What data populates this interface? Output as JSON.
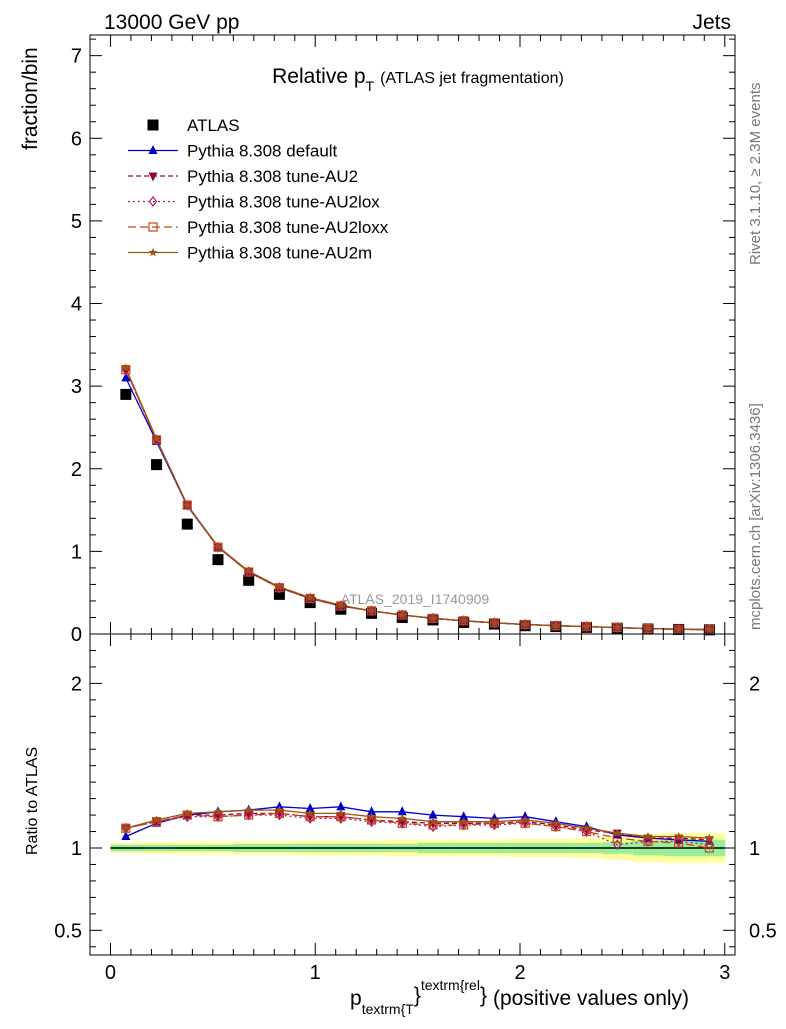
{
  "header": {
    "left": "13000 GeV pp",
    "right": "Jets"
  },
  "side_text": {
    "rivet": "Rivet 3.1.10, ≥ 2.3M events",
    "mcplots": "mcplots.cern.ch [arXiv:1306.3436]"
  },
  "watermark": "ATLAS_2019_I1740909",
  "chart_data": [
    {
      "type": "scatter",
      "panel": "main",
      "title": "Relative p_T (ATLAS jet fragmentation)",
      "title_main": "Relative p",
      "title_sub": "T",
      "title_rest": "(ATLAS jet fragmentation)",
      "ylabel": "fraction/bin",
      "xlim": [
        -0.1,
        3.05
      ],
      "ylim": [
        0,
        7.25
      ],
      "yticks": [
        0,
        1,
        2,
        3,
        4,
        5,
        6,
        7
      ],
      "x": [
        0.075,
        0.225,
        0.375,
        0.525,
        0.675,
        0.825,
        0.975,
        1.125,
        1.275,
        1.425,
        1.575,
        1.725,
        1.875,
        2.025,
        2.175,
        2.325,
        2.475,
        2.625,
        2.775,
        2.925
      ],
      "legend_position": "top-left",
      "series": [
        {
          "name": "ATLAS",
          "color": "#000000",
          "marker": "square",
          "values": [
            2.9,
            2.05,
            1.33,
            0.9,
            0.65,
            0.48,
            0.38,
            0.3,
            0.25,
            0.2,
            0.17,
            0.14,
            0.12,
            0.1,
            0.09,
            0.08,
            0.07,
            0.06,
            0.055,
            0.05
          ]
        },
        {
          "name": "Pythia 8.308 default",
          "color": "#0000cc",
          "marker": "triangle",
          "dash": "",
          "values": [
            3.1,
            2.33,
            1.55,
            1.05,
            0.75,
            0.56,
            0.43,
            0.34,
            0.28,
            0.23,
            0.19,
            0.16,
            0.135,
            0.115,
            0.1,
            0.09,
            0.078,
            0.065,
            0.058,
            0.052
          ]
        },
        {
          "name": "Pythia 8.308 tune-AU2",
          "color": "#990044",
          "marker": "triangle-down",
          "dash": "5,3",
          "values": [
            3.2,
            2.35,
            1.56,
            1.05,
            0.75,
            0.56,
            0.43,
            0.34,
            0.28,
            0.23,
            0.19,
            0.16,
            0.135,
            0.115,
            0.1,
            0.09,
            0.078,
            0.065,
            0.058,
            0.052
          ]
        },
        {
          "name": "Pythia 8.308 tune-AU2lox",
          "color": "#aa2266",
          "marker": "diamond",
          "dash": "2,3",
          "values": [
            3.2,
            2.35,
            1.56,
            1.05,
            0.75,
            0.56,
            0.43,
            0.34,
            0.28,
            0.23,
            0.19,
            0.16,
            0.135,
            0.115,
            0.1,
            0.09,
            0.078,
            0.065,
            0.058,
            0.052
          ]
        },
        {
          "name": "Pythia 8.308 tune-AU2loxx",
          "color": "#cc4411",
          "marker": "square-open",
          "dash": "8,4",
          "values": [
            3.2,
            2.35,
            1.56,
            1.05,
            0.75,
            0.56,
            0.43,
            0.34,
            0.28,
            0.23,
            0.19,
            0.16,
            0.135,
            0.115,
            0.1,
            0.09,
            0.078,
            0.065,
            0.058,
            0.052
          ]
        },
        {
          "name": "Pythia 8.308 tune-AU2m",
          "color": "#995511",
          "marker": "star",
          "dash": "",
          "values": [
            3.22,
            2.36,
            1.56,
            1.06,
            0.76,
            0.57,
            0.44,
            0.35,
            0.28,
            0.23,
            0.19,
            0.16,
            0.135,
            0.115,
            0.1,
            0.09,
            0.078,
            0.065,
            0.058,
            0.052
          ]
        }
      ]
    },
    {
      "type": "line",
      "panel": "ratio",
      "ylabel": "Ratio to ATLAS",
      "xlabel": "p_textrm{T}^textrm{rel} (positive values only)",
      "xlabel_main": "p",
      "xlabel_sub": "textrm{T",
      "xlabel_sup": "textrm{rel",
      "xlabel_brace1": "}",
      "xlabel_brace2": "}",
      "xlabel_rest": "(positive values only)",
      "xlim": [
        -0.1,
        3.05
      ],
      "ylim": [
        0.35,
        2.3
      ],
      "xticks": [
        0,
        1,
        2,
        3
      ],
      "xtick_labels": [
        "0",
        "1",
        "2",
        "3"
      ],
      "yticks": [
        0.5,
        1,
        2
      ],
      "ytick_labels": [
        "0.5",
        "1",
        "2"
      ],
      "x": [
        0.075,
        0.225,
        0.375,
        0.525,
        0.675,
        0.825,
        0.975,
        1.125,
        1.275,
        1.425,
        1.575,
        1.725,
        1.875,
        2.025,
        2.175,
        2.325,
        2.475,
        2.625,
        2.775,
        2.925
      ],
      "band_green_half": [
        0.02,
        0.02,
        0.02,
        0.02,
        0.025,
        0.025,
        0.025,
        0.025,
        0.025,
        0.025,
        0.03,
        0.03,
        0.03,
        0.03,
        0.03,
        0.03,
        0.035,
        0.045,
        0.05,
        0.05
      ],
      "band_yellow_half": [
        0.03,
        0.035,
        0.04,
        0.04,
        0.04,
        0.04,
        0.045,
        0.045,
        0.045,
        0.05,
        0.05,
        0.05,
        0.05,
        0.055,
        0.055,
        0.06,
        0.07,
        0.085,
        0.09,
        0.09
      ],
      "series": [
        {
          "name": "Pythia 8.308 default",
          "color": "#0000cc",
          "marker": "triangle",
          "dash": "",
          "values": [
            1.07,
            1.15,
            1.2,
            1.22,
            1.23,
            1.25,
            1.24,
            1.25,
            1.22,
            1.22,
            1.2,
            1.19,
            1.18,
            1.19,
            1.16,
            1.13,
            1.08,
            1.06,
            1.05,
            1.04
          ]
        },
        {
          "name": "Pythia 8.308 tune-AU2",
          "color": "#990044",
          "marker": "triangle-down",
          "dash": "5,3",
          "values": [
            1.12,
            1.16,
            1.2,
            1.2,
            1.21,
            1.21,
            1.19,
            1.19,
            1.17,
            1.16,
            1.15,
            1.15,
            1.15,
            1.16,
            1.14,
            1.11,
            1.09,
            1.06,
            1.06,
            1.05
          ]
        },
        {
          "name": "Pythia 8.308 tune-AU2lox",
          "color": "#aa2266",
          "marker": "diamond",
          "dash": "2,3",
          "values": [
            1.12,
            1.16,
            1.19,
            1.19,
            1.2,
            1.2,
            1.18,
            1.18,
            1.16,
            1.15,
            1.13,
            1.14,
            1.14,
            1.15,
            1.13,
            1.1,
            1.02,
            1.04,
            1.04,
            1.02
          ]
        },
        {
          "name": "Pythia 8.308 tune-AU2loxx",
          "color": "#cc4411",
          "marker": "square-open",
          "dash": "8,4",
          "values": [
            1.12,
            1.16,
            1.2,
            1.19,
            1.2,
            1.21,
            1.19,
            1.19,
            1.17,
            1.15,
            1.14,
            1.14,
            1.15,
            1.15,
            1.13,
            1.1,
            1.06,
            1.04,
            1.03,
            1.0
          ]
        },
        {
          "name": "Pythia 8.308 tune-AU2m",
          "color": "#995511",
          "marker": "star",
          "dash": "",
          "values": [
            1.12,
            1.17,
            1.21,
            1.22,
            1.23,
            1.23,
            1.21,
            1.21,
            1.19,
            1.18,
            1.16,
            1.16,
            1.16,
            1.17,
            1.15,
            1.12,
            1.09,
            1.07,
            1.07,
            1.06
          ]
        }
      ]
    }
  ]
}
